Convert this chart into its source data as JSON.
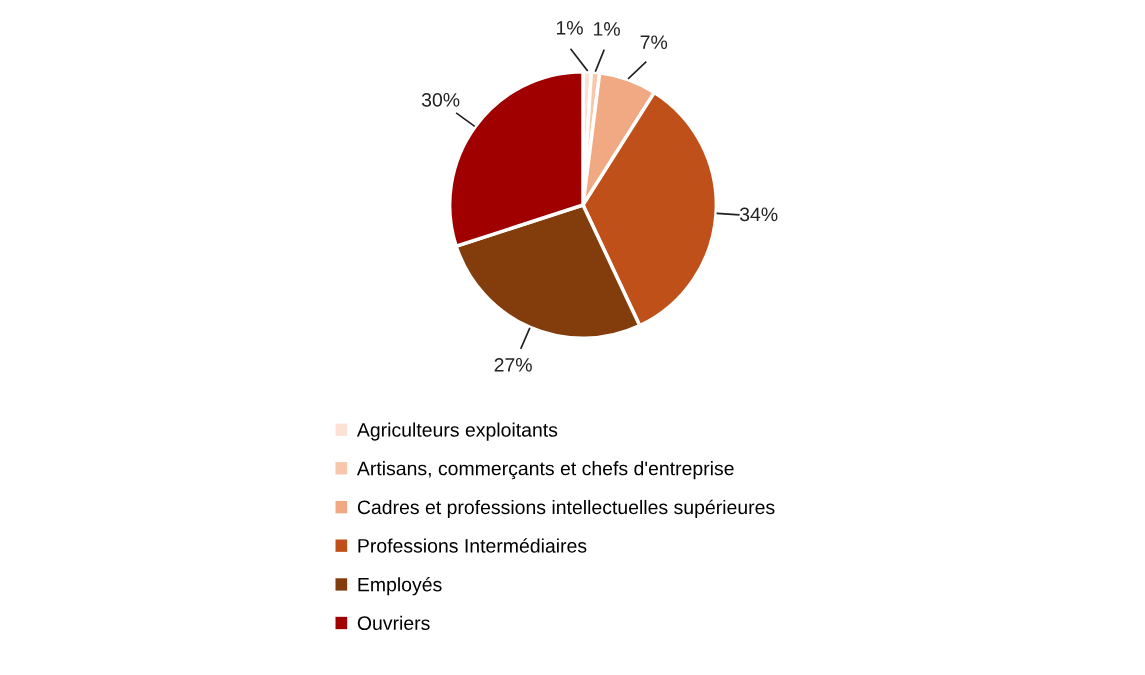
{
  "chart_data": {
    "type": "pie",
    "categories": [
      "Agriculteurs exploitants",
      "Artisans, commerçants et chefs d'entreprise",
      "Cadres et professions intellectuelles supérieures",
      "Professions Intermédiaires",
      "Employés",
      "Ouvriers"
    ],
    "values": [
      1,
      1,
      7,
      34,
      27,
      30
    ],
    "colors": [
      "#fbe2d5",
      "#f7c6ab",
      "#f1a983",
      "#c0501a",
      "#833c0c",
      "#a00000"
    ],
    "value_labels": [
      "1%",
      "1%",
      "7%",
      "34%",
      "27%",
      "30%"
    ],
    "legend": "bottom"
  }
}
